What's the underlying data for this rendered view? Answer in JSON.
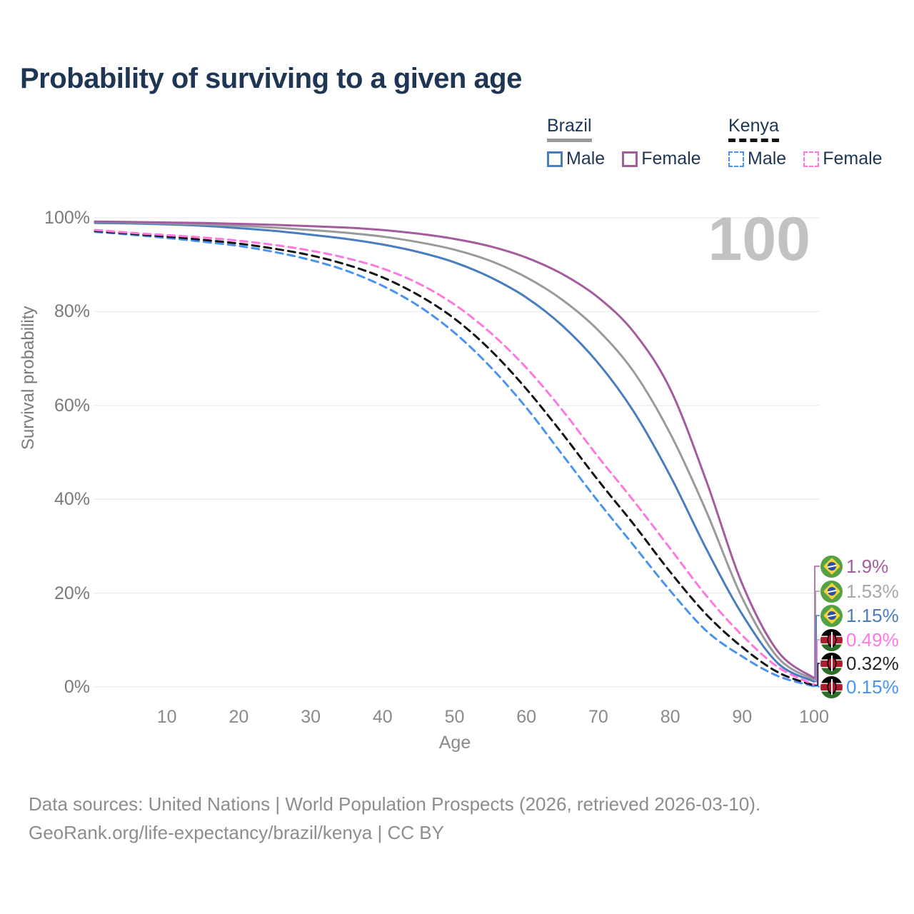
{
  "title": "Probability of surviving to a given age",
  "watermark": "100",
  "legend": {
    "groups": [
      {
        "label": "Brazil",
        "line_style": "solid",
        "items": [
          {
            "label": "Male",
            "color": "#4a7dbf"
          },
          {
            "label": "Female",
            "color": "#a35d9e"
          }
        ]
      },
      {
        "label": "Kenya",
        "line_style": "dashed",
        "items": [
          {
            "label": "Male",
            "color": "#4b93f0"
          },
          {
            "label": "Female",
            "color": "#ff77df"
          }
        ]
      }
    ]
  },
  "chart_data": {
    "type": "line",
    "title": "Probability of surviving to a given age",
    "xlabel": "Age",
    "ylabel": "Survival probability",
    "xlim": [
      0,
      100
    ],
    "ylim": [
      0,
      100
    ],
    "grid": true,
    "legend_position": "top-right",
    "highlighted_age": 100,
    "x_ticks": [
      10,
      20,
      30,
      40,
      50,
      60,
      70,
      80,
      90,
      100
    ],
    "y_ticks": [
      {
        "value": 0,
        "label": "0%"
      },
      {
        "value": 20,
        "label": "20%"
      },
      {
        "value": 40,
        "label": "40%"
      },
      {
        "value": 60,
        "label": "60%"
      },
      {
        "value": 80,
        "label": "80%"
      },
      {
        "value": 100,
        "label": "100%"
      }
    ],
    "x": [
      0,
      5,
      10,
      15,
      20,
      25,
      30,
      35,
      40,
      45,
      50,
      55,
      60,
      65,
      70,
      75,
      80,
      85,
      90,
      95,
      100
    ],
    "series": [
      {
        "name": "Brazil Female",
        "country": "brazil",
        "color": "#a35d9e",
        "dashed": false,
        "end_label": "1.9%",
        "values": [
          99.2,
          99.1,
          99.0,
          98.9,
          98.7,
          98.5,
          98.2,
          97.9,
          97.4,
          96.6,
          95.5,
          93.9,
          91.5,
          88.0,
          83.0,
          75.5,
          63.5,
          44.0,
          22.0,
          7.5,
          1.9
        ]
      },
      {
        "name": "Brazil Both sexes",
        "country": "brazil",
        "color": "#9a9a9a",
        "label_color": "#a8a8a8",
        "dashed": false,
        "end_label": "1.53%",
        "values": [
          99.1,
          99.0,
          98.8,
          98.6,
          98.3,
          97.9,
          97.4,
          96.8,
          96.0,
          94.8,
          93.2,
          90.8,
          87.3,
          82.5,
          76.0,
          67.0,
          54.0,
          37.5,
          19.0,
          6.2,
          1.53
        ]
      },
      {
        "name": "Brazil Male",
        "country": "brazil",
        "color": "#4a7dbf",
        "dashed": false,
        "end_label": "1.15%",
        "values": [
          98.9,
          98.8,
          98.6,
          98.3,
          97.8,
          97.2,
          96.4,
          95.5,
          94.3,
          92.7,
          90.5,
          87.3,
          83.0,
          77.0,
          69.0,
          58.5,
          45.0,
          29.5,
          15.5,
          5.0,
          1.15
        ]
      },
      {
        "name": "Kenya Female",
        "country": "kenya",
        "color": "#ff77df",
        "dashed": true,
        "end_label": "0.49%",
        "values": [
          97.4,
          96.8,
          96.3,
          95.8,
          95.1,
          94.2,
          93.0,
          91.4,
          89.2,
          86.0,
          81.5,
          75.5,
          68.0,
          59.0,
          49.0,
          39.5,
          29.5,
          19.5,
          11.0,
          4.2,
          0.49
        ]
      },
      {
        "name": "Kenya Both sexes",
        "country": "kenya",
        "color": "#141414",
        "label_color": "#262626",
        "dashed": true,
        "end_label": "0.32%",
        "values": [
          97.2,
          96.6,
          96.0,
          95.3,
          94.5,
          93.4,
          92.0,
          90.0,
          87.3,
          83.5,
          78.5,
          71.8,
          63.5,
          54.0,
          44.0,
          34.5,
          24.5,
          15.5,
          8.5,
          3.1,
          0.32
        ]
      },
      {
        "name": "Kenya Male",
        "country": "kenya",
        "color": "#4b93f0",
        "dashed": true,
        "end_label": "0.15%",
        "values": [
          97.0,
          96.4,
          95.7,
          94.9,
          94.0,
          92.7,
          91.0,
          88.7,
          85.5,
          81.2,
          75.5,
          68.2,
          59.5,
          49.5,
          39.5,
          30.0,
          20.5,
          12.0,
          6.5,
          2.3,
          0.15
        ]
      }
    ]
  },
  "footer": {
    "line1": "Data sources: United Nations | World Population Prospects (2026, retrieved 2026-03-10).",
    "line2": "GeoRank.org/life-expectancy/brazil/kenya | CC BY"
  }
}
